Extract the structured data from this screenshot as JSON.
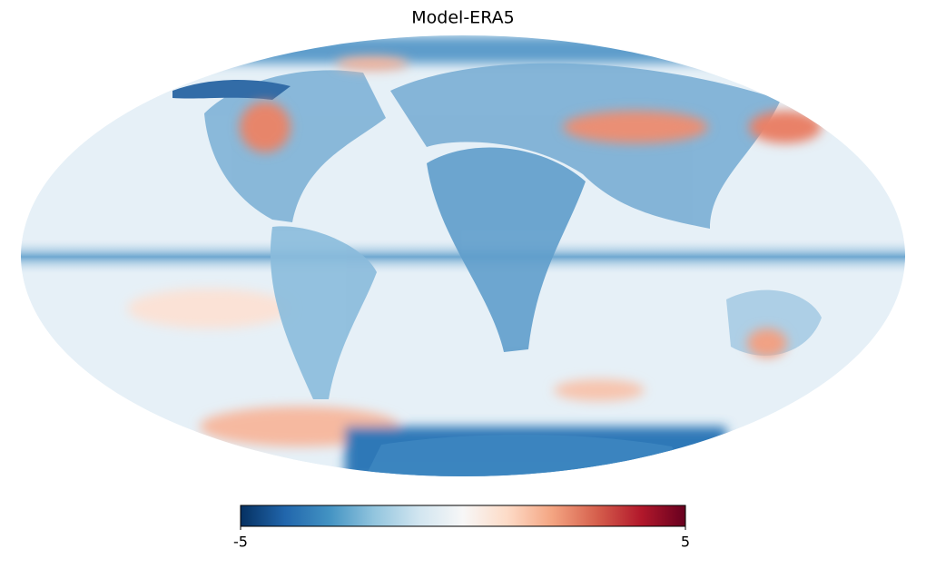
{
  "map": {
    "title": "Model-ERA5",
    "colorbar": {
      "lim": [
        -5,
        5
      ],
      "ticks": [
        -5,
        5
      ],
      "colormap": [
        "#053061",
        "#2166ac",
        "#4393c3",
        "#92c5de",
        "#d1e5f0",
        "#f7f7f7",
        "#fddbc7",
        "#f4a582",
        "#d6604d",
        "#b2182b",
        "#67001f"
      ]
    }
  }
}
